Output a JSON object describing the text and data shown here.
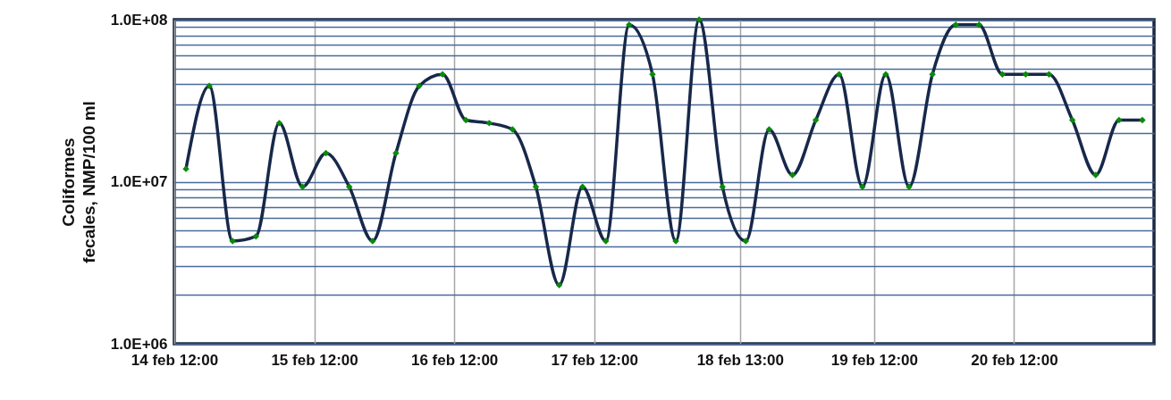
{
  "chart_data": {
    "type": "line",
    "ylabel": "Coliformes\nfecales, NMP/100 ml",
    "x": [
      "--02-14T14:00",
      "--02-14T18:00",
      "--02-14T22:00",
      "--02-15T02:00",
      "--02-15T06:00",
      "--02-15T10:00",
      "--02-15T14:00",
      "--02-15T18:00",
      "--02-15T22:00",
      "--02-16T02:00",
      "--02-16T06:00",
      "--02-16T10:00",
      "--02-16T14:00",
      "--02-16T18:00",
      "--02-16T22:00",
      "--02-17T02:00",
      "--02-17T06:00",
      "--02-17T10:00",
      "--02-17T14:00",
      "--02-17T18:00",
      "--02-17T22:00",
      "--02-18T02:00",
      "--02-18T06:00",
      "--02-18T10:00",
      "--02-18T14:00",
      "--02-18T18:00",
      "--02-18T22:00",
      "--02-19T02:00",
      "--02-19T06:00",
      "--02-19T10:00",
      "--02-19T14:00",
      "--02-19T18:00",
      "--02-19T22:00",
      "--02-20T02:00",
      "--02-20T06:00",
      "--02-20T10:00",
      "--02-20T14:00",
      "--02-20T18:00",
      "--02-20T22:00",
      "--02-21T02:00",
      "--02-21T06:00",
      "--02-21T10:00"
    ],
    "series": [
      {
        "color": "#17284a",
        "values": [
          12000000,
          39000000,
          4300000,
          4600000,
          23000000,
          9300000,
          15000000,
          9300000,
          4300000,
          15000000,
          39000000,
          46000000,
          24000000,
          23000000,
          21000000,
          9300000,
          2300000,
          9300000,
          4300000,
          93000000,
          46000000,
          4300000,
          100000000,
          9300000,
          4300000,
          21000000,
          11000000,
          24000000,
          46000000,
          9300000,
          46000000,
          9300000,
          46000000,
          93000000,
          93000000,
          46000000,
          46000000,
          46000000,
          24000000,
          11000000,
          24000000,
          24000000
        ]
      }
    ],
    "xlim": [
      "--02-14T12:00",
      "--02-21T12:00"
    ],
    "xticks": [
      {
        "value": "--02-14T12:00",
        "label": "14 feb 12:00"
      },
      {
        "value": "--02-15T12:00",
        "label": "15 feb 12:00"
      },
      {
        "value": "--02-16T12:00",
        "label": "16 feb 12:00"
      },
      {
        "value": "--02-17T12:00",
        "label": "17 feb 12:00"
      },
      {
        "value": "--02-18T13:00",
        "label": "18 feb 13:00"
      },
      {
        "value": "--02-19T12:00",
        "label": "19 feb 12:00"
      },
      {
        "value": "--02-20T12:00",
        "label": "20 feb 12:00"
      }
    ],
    "log": true,
    "ylim": [
      1000000,
      100000000
    ],
    "yticks": [
      {
        "value": 1000000,
        "label": "1.0E+06"
      },
      {
        "value": 2000000,
        "label": null
      },
      {
        "value": 3000000,
        "label": null
      },
      {
        "value": 4000000,
        "label": null
      },
      {
        "value": 5000000,
        "label": null
      },
      {
        "value": 6000000,
        "label": null
      },
      {
        "value": 7000000,
        "label": null
      },
      {
        "value": 8000000,
        "label": null
      },
      {
        "value": 9000000,
        "label": null
      },
      {
        "value": 10000000,
        "label": "1.0E+07"
      },
      {
        "value": 20000000,
        "label": null
      },
      {
        "value": 30000000,
        "label": null
      },
      {
        "value": 40000000,
        "label": null
      },
      {
        "value": 50000000,
        "label": null
      },
      {
        "value": 60000000,
        "label": null
      },
      {
        "value": 70000000,
        "label": null
      },
      {
        "value": 80000000,
        "label": null
      },
      {
        "value": 90000000,
        "label": null
      },
      {
        "value": 100000000,
        "label": "1.0E+08"
      }
    ],
    "grid": true,
    "marker": "diamond",
    "line_style": "solid"
  }
}
